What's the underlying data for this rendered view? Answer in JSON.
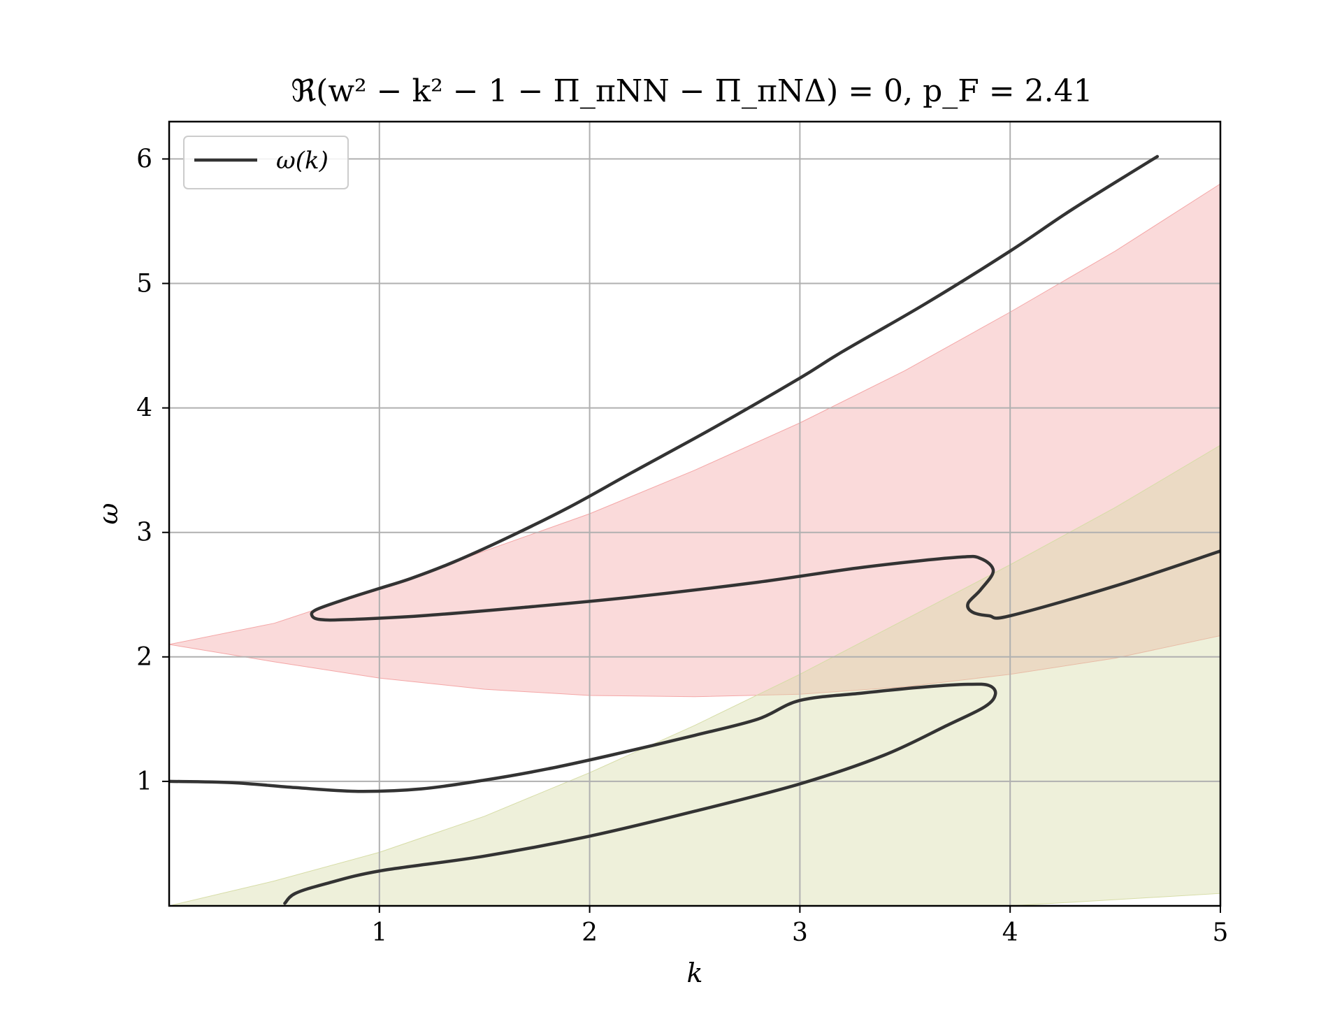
{
  "chart_data": {
    "type": "line",
    "title": "ℜ(w² − k² − 1 − Π_πNN − Π_πNΔ) = 0, p_F = 2.41",
    "xlabel": "k",
    "ylabel": "ω",
    "xlim": [
      0,
      5
    ],
    "ylim": [
      0,
      6.3
    ],
    "xticks": [
      1,
      2,
      3,
      4,
      5
    ],
    "yticks": [
      1,
      2,
      3,
      4,
      5,
      6
    ],
    "grid": true,
    "legend_position": "top-left",
    "legend": [
      {
        "label": "ω(k)",
        "color": "#333333"
      }
    ],
    "colors": {
      "line": "#333333",
      "region_pink": "#f4a6a6",
      "region_olive": "#d6dca6",
      "region_overlap": "#e8c6aa",
      "grid": "#b0b0b0"
    },
    "regions": [
      {
        "name": "pink-band",
        "k": [
          0,
          0.5,
          1,
          1.5,
          2,
          2.5,
          3,
          3.5,
          4,
          4.5,
          5
        ],
        "upper": [
          2.1,
          2.27,
          2.55,
          2.85,
          3.15,
          3.5,
          3.88,
          4.3,
          4.77,
          5.26,
          5.8
        ],
        "lower": [
          2.1,
          1.96,
          1.83,
          1.74,
          1.69,
          1.68,
          1.7,
          1.76,
          1.86,
          1.99,
          2.17
        ]
      },
      {
        "name": "olive-band",
        "k": [
          0,
          0.5,
          1,
          1.5,
          2,
          2.5,
          3,
          3.5,
          4,
          4.5,
          5
        ],
        "upper": [
          0,
          0.2,
          0.43,
          0.72,
          1.07,
          1.45,
          1.86,
          2.3,
          2.74,
          3.2,
          3.7
        ],
        "lower": [
          0,
          0,
          0,
          0,
          0,
          0,
          0,
          0,
          0,
          0.05,
          0.1
        ]
      }
    ],
    "series": [
      {
        "name": "ω(k)",
        "segments": [
          {
            "k": [
              4.7,
              4.3,
              4.0,
              3.6,
              3.2,
              3.0,
              2.6,
              2.2,
              1.9,
              1.6,
              1.35,
              1.15,
              1.0,
              0.85,
              0.7,
              0.68,
              0.72,
              0.85,
              1.2,
              1.7,
              2.2,
              2.8,
              3.3,
              3.75,
              3.86,
              3.92,
              3.86,
              3.8,
              3.82,
              3.9,
              4.0,
              4.5,
              5.0
            ],
            "omega": [
              6.02,
              5.6,
              5.26,
              4.84,
              4.45,
              4.24,
              3.85,
              3.48,
              3.2,
              2.95,
              2.76,
              2.63,
              2.55,
              2.47,
              2.38,
              2.33,
              2.3,
              2.3,
              2.33,
              2.4,
              2.48,
              2.6,
              2.72,
              2.8,
              2.79,
              2.69,
              2.54,
              2.43,
              2.36,
              2.33,
              2.33,
              2.57,
              2.85
            ]
          },
          {
            "k": [
              0.0,
              0.3,
              0.6,
              0.9,
              1.2,
              1.5,
              1.8,
              2.1,
              2.5,
              2.8,
              3.0,
              3.3,
              3.6,
              3.8,
              3.9,
              3.93,
              3.88,
              3.7,
              3.4,
              3.0,
              2.5,
              2.0,
              1.5,
              1.0,
              0.75,
              0.6,
              0.55
            ],
            "omega": [
              1.0,
              0.99,
              0.95,
              0.92,
              0.94,
              1.01,
              1.1,
              1.21,
              1.37,
              1.5,
              1.65,
              1.71,
              1.76,
              1.78,
              1.77,
              1.7,
              1.6,
              1.45,
              1.21,
              0.98,
              0.76,
              0.56,
              0.4,
              0.28,
              0.18,
              0.1,
              0.02
            ]
          }
        ]
      }
    ]
  }
}
